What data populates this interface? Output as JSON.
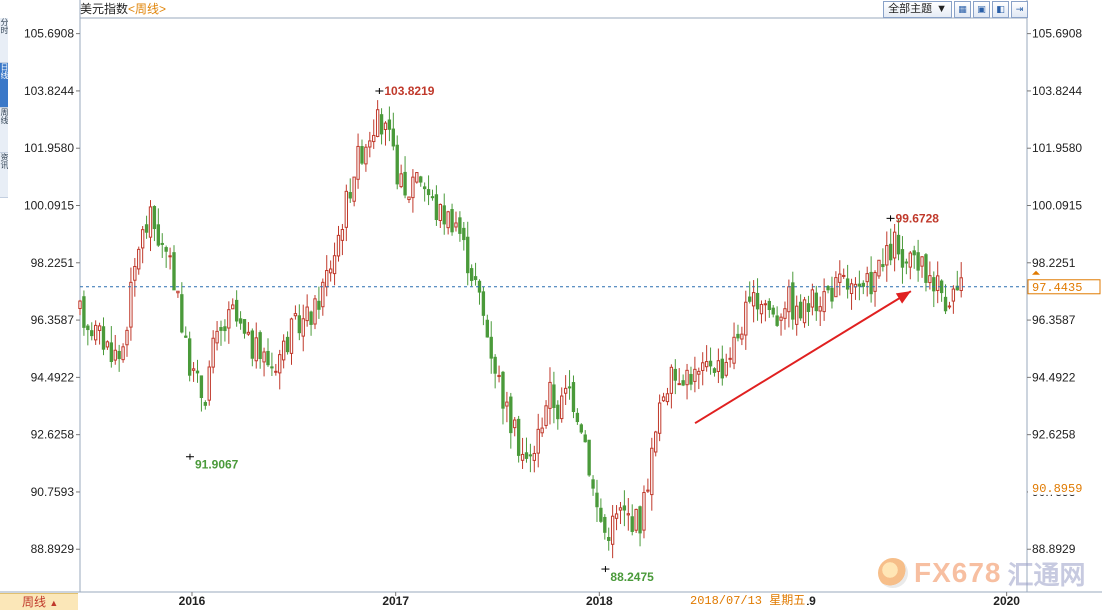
{
  "header": {
    "title": "美元指数",
    "period_label": "<周线>",
    "theme_select": "全部主题",
    "theme_arrow": "▼"
  },
  "left_tabs": [
    "分时",
    "日线",
    "周线",
    "资讯"
  ],
  "footer": {
    "period_button": "周线",
    "period_arrow": "▲",
    "cursor_date": "2018/07/13 星期五"
  },
  "watermark": {
    "text": "FX678",
    "cn": "汇通网"
  },
  "chart_data": {
    "type": "candlestick",
    "title": "美元指数",
    "frequency": "weekly",
    "ylim": [
      87.5,
      106.2
    ],
    "y_ticks": [
      88.8929,
      90.7593,
      92.6258,
      94.4922,
      96.3587,
      98.2251,
      100.0915,
      101.958,
      103.8244,
      105.6908
    ],
    "y_tick_labels": [
      "88.8929",
      "90.7593",
      "92.6258",
      "94.4922",
      "96.3587",
      "98.2251",
      "100.0915",
      "101.9580",
      "103.8244",
      "105.6908"
    ],
    "x_tick_labels": [
      "2016",
      "2017",
      "2018",
      "2020"
    ],
    "x_tick_positions": [
      2016.0,
      2017.0,
      2018.0,
      2020.0
    ],
    "x_range": [
      2015.45,
      2020.1
    ],
    "partial_label": "19",
    "partial_label_x": 2019.03,
    "current_price": 97.4435,
    "current_price_label": "97.4435",
    "secondary_price_label": "90.8959",
    "secondary_price": 90.8959,
    "annotations": [
      {
        "label": "103.8219",
        "value": 103.8219,
        "x": 2016.92,
        "kind": "high"
      },
      {
        "label": "91.9067",
        "value": 91.9067,
        "x": 2015.99,
        "kind": "low"
      },
      {
        "label": "88.2475",
        "value": 88.2475,
        "x": 2018.03,
        "kind": "low"
      },
      {
        "label": "99.6728",
        "value": 99.6728,
        "x": 2019.43,
        "kind": "high"
      }
    ],
    "trend_arrow": {
      "from": [
        2018.47,
        93.0
      ],
      "to": [
        2019.53,
        97.3
      ]
    },
    "colors": {
      "up": "#c0392b",
      "down": "#4a9a3a",
      "dashed": "#2a6fb0",
      "arrow": "#e02020"
    },
    "anchors": [
      [
        2015.45,
        96.6
      ],
      [
        2015.55,
        95.8
      ],
      [
        2015.65,
        95.1
      ],
      [
        2015.74,
        98.9
      ],
      [
        2015.8,
        99.7
      ],
      [
        2015.87,
        98.4
      ],
      [
        2015.93,
        97.4
      ],
      [
        2015.96,
        95.6
      ],
      [
        2016.0,
        94.7
      ],
      [
        2016.06,
        93.8
      ],
      [
        2016.1,
        95.4
      ],
      [
        2016.2,
        96.6
      ],
      [
        2016.27,
        95.6
      ],
      [
        2016.4,
        94.9
      ],
      [
        2016.5,
        96.1
      ],
      [
        2016.6,
        96.6
      ],
      [
        2016.7,
        98.6
      ],
      [
        2016.8,
        101.4
      ],
      [
        2016.9,
        102.9
      ],
      [
        2016.96,
        102.4
      ],
      [
        2017.05,
        100.2
      ],
      [
        2017.1,
        101.4
      ],
      [
        2017.2,
        99.9
      ],
      [
        2017.3,
        99.6
      ],
      [
        2017.35,
        98.4
      ],
      [
        2017.4,
        97.4
      ],
      [
        2017.45,
        95.9
      ],
      [
        2017.55,
        93.3
      ],
      [
        2017.6,
        92.4
      ],
      [
        2017.65,
        91.6
      ],
      [
        2017.7,
        92.6
      ],
      [
        2017.75,
        94.1
      ],
      [
        2017.8,
        93.4
      ],
      [
        2017.85,
        94.2
      ],
      [
        2017.92,
        92.9
      ],
      [
        2017.98,
        90.4
      ],
      [
        2018.03,
        89.4
      ],
      [
        2018.1,
        90.1
      ],
      [
        2018.2,
        89.8
      ],
      [
        2018.27,
        92.4
      ],
      [
        2018.32,
        94.2
      ],
      [
        2018.4,
        94.7
      ],
      [
        2018.5,
        94.5
      ],
      [
        2018.55,
        95.1
      ],
      [
        2018.6,
        94.8
      ],
      [
        2018.67,
        95.7
      ],
      [
        2018.72,
        96.6
      ],
      [
        2018.8,
        97.1
      ],
      [
        2018.87,
        96.4
      ],
      [
        2018.92,
        97.2
      ],
      [
        2018.97,
        96.5
      ],
      [
        2019.02,
        96.8
      ],
      [
        2019.1,
        97.2
      ],
      [
        2019.2,
        97.6
      ],
      [
        2019.28,
        97.1
      ],
      [
        2019.35,
        97.8
      ],
      [
        2019.4,
        98.2
      ],
      [
        2019.45,
        98.9
      ],
      [
        2019.5,
        97.8
      ],
      [
        2019.55,
        98.4
      ],
      [
        2019.6,
        97.9
      ],
      [
        2019.65,
        97.7
      ],
      [
        2019.7,
        97.1
      ],
      [
        2019.75,
        97.3
      ],
      [
        2019.78,
        97.44
      ]
    ]
  }
}
